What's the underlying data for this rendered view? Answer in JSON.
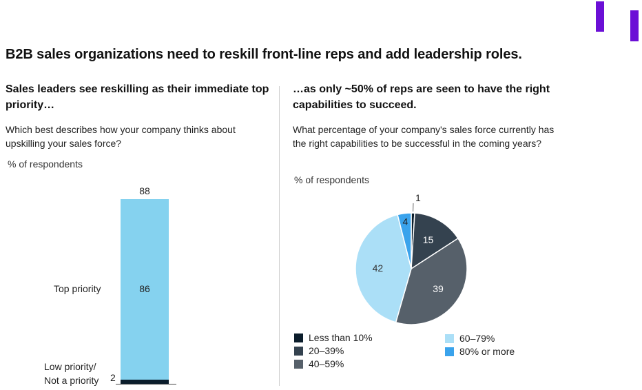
{
  "title": "B2B sales organizations need to reskill front-line reps and add leadership roles.",
  "left": {
    "subtitle": "Sales leaders see reskilling as their immediate top priority…",
    "question": "Which best describes how your company thinks about upskilling your sales force?",
    "unit": "% of respondents"
  },
  "right": {
    "subtitle": "…as only ~50% of reps are seen to have the right capabilities to succeed.",
    "question": "What percentage of your company's sales force currently has the right capabilities to be successful in the coming years?",
    "unit": "% of respondents"
  },
  "chart_data": [
    {
      "type": "bar",
      "stacked": true,
      "total_label": "88",
      "series": [
        {
          "name": "Top priority",
          "value": 86,
          "color": "#85d2ef"
        },
        {
          "name": "Low priority/ Not a priority",
          "value": 2,
          "color": "#0b1d2b"
        }
      ]
    },
    {
      "type": "pie",
      "slices": [
        {
          "label": "Less than 10%",
          "value": 1,
          "color": "#0b1d2b"
        },
        {
          "label": "20–39%",
          "value": 15,
          "color": "#34424f"
        },
        {
          "label": "40–59%",
          "value": 39,
          "color": "#56606a"
        },
        {
          "label": "60–79%",
          "value": 42,
          "color": "#abdff7"
        },
        {
          "label": "80% or more",
          "value": 4,
          "color": "#3aa3ec"
        }
      ]
    }
  ]
}
